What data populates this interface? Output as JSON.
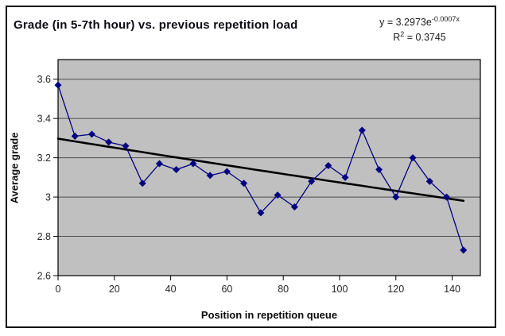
{
  "title": "Grade (in 5-7th hour) vs. previous repetition load",
  "equation": {
    "prefix": "y = 3.2973e",
    "exponent": "-0.0007x"
  },
  "r_squared": {
    "base": "R",
    "sup": "2",
    "rest": " = 0.3745"
  },
  "chart_data": {
    "type": "line",
    "title": "Grade (in 5-7th hour) vs. previous repetition load",
    "xlabel": "Position in repetition queue",
    "ylabel": "Average grade",
    "x": [
      0,
      6,
      12,
      18,
      24,
      30,
      36,
      42,
      48,
      54,
      60,
      66,
      72,
      78,
      84,
      90,
      96,
      102,
      108,
      114,
      120,
      126,
      132,
      138,
      144
    ],
    "values": [
      3.57,
      3.31,
      3.32,
      3.28,
      3.26,
      3.07,
      3.17,
      3.14,
      3.17,
      3.11,
      3.13,
      3.07,
      2.92,
      3.01,
      2.95,
      3.08,
      3.16,
      3.1,
      3.34,
      3.14,
      3.0,
      3.2,
      3.08,
      3.0,
      2.73
    ],
    "xlim": [
      0,
      150
    ],
    "ylim": [
      2.6,
      3.7
    ],
    "x_ticks": [
      0,
      20,
      40,
      60,
      80,
      100,
      120,
      140
    ],
    "y_ticks": [
      {
        "v": 2.6,
        "label": "2.6"
      },
      {
        "v": 2.8,
        "label": "2.8"
      },
      {
        "v": 3.0,
        "label": "3"
      },
      {
        "v": 3.2,
        "label": "3.2"
      },
      {
        "v": 3.4,
        "label": "3.4"
      },
      {
        "v": 3.6,
        "label": "3.6"
      }
    ],
    "grid": true,
    "legend": false,
    "marker": "diamond",
    "series_color": "#000080",
    "plot_bg": "#c0c0c0",
    "gridline_color": "#4d4d4d",
    "axis_color": "#000000",
    "trendline": {
      "type": "exponential",
      "a": 3.2973,
      "b": -0.0007,
      "equation": "y = 3.2973e^(-0.0007x)",
      "r2": 0.3745,
      "color": "#000000"
    }
  }
}
